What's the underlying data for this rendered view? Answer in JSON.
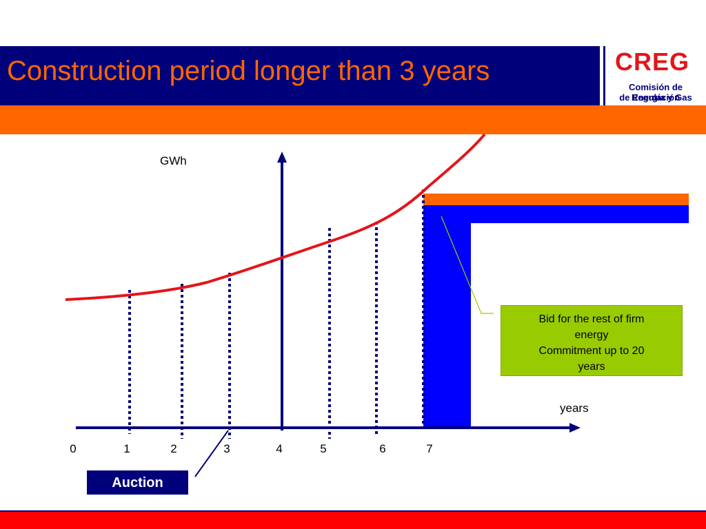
{
  "slide": {
    "title": "Construction period longer than 3 years"
  },
  "logo": {
    "mark": "CREG",
    "line1": "Comisión de Regulación",
    "line2": "de Energía y Gas",
    "colors": {
      "mark": "#e3151a",
      "text": "#00007a"
    }
  },
  "diagram": {
    "y_axis_label": "GWh",
    "x_axis_label": "years",
    "ticks": [
      "0",
      "1",
      "2",
      "3",
      "4",
      "5",
      "6",
      "7"
    ],
    "callout": {
      "line1": "Bid for the rest of firm",
      "line2": "energy",
      "line3": "Commitment up to 20",
      "line4": "years"
    },
    "auction_label": "Auction"
  },
  "colors": {
    "navy": "#00007a",
    "orange": "#ff6600",
    "red": "#ff0000",
    "blue": "#0000ff",
    "green": "#99cc00",
    "curve": "#e3151a"
  }
}
